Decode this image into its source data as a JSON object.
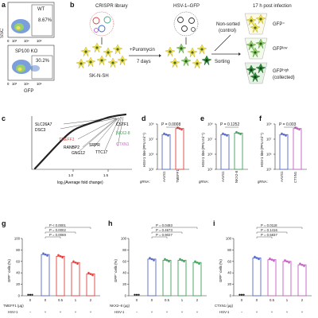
{
  "panels": {
    "a": "a",
    "b": "b",
    "c": "c",
    "d": "d",
    "e": "e",
    "f": "f",
    "g": "g",
    "h": "h",
    "i": "i"
  },
  "flow": {
    "ssc_label": "SSC",
    "gfp_label": "GFP",
    "wt_label": "WT",
    "wt_percent": "8.67%",
    "ko_label": "SP100 KO",
    "ko_percent": "30.2%",
    "tick_low": "10³",
    "tick_mid": "10⁴",
    "tick_high": "10⁵"
  },
  "schematic": {
    "library": "CRISPR library",
    "cells": "SK-N-SH",
    "step1_line1": "+Puromycin",
    "step1_line2": "7 days",
    "step2": "HSV-1–GFP",
    "step3": "17 h post infection",
    "nonsorted_line1": "Non-sorted",
    "nonsorted_line2": "(control)",
    "sorting": "Sorting",
    "pop1": "GFP⁺",
    "pop2": "GFPˡᵒʷ",
    "pop3_line1": "GFPʰⁱᵍʰ",
    "pop3_line2": "(collected)"
  },
  "rank_plot": {
    "xlabel": "log₂(Average fold change)",
    "ticks": [
      "1.0",
      "1.5"
    ],
    "genes": [
      "SLC26A7",
      "DSC3",
      "TMEFF1",
      "RANBP2",
      "GNG12",
      "SRPR",
      "TTC17",
      "CSTF1",
      "NKX2-8",
      "CTXN1"
    ],
    "colors": {
      "TMEFF1": "#e0413c",
      "NKX2-8": "#3fa15a",
      "CTXN1": "#c45fc4"
    }
  },
  "titer_plots": {
    "ylabel": "HSV-1 titre (PFU ml⁻¹)",
    "yticks": [
      "10⁸",
      "10⁷",
      "10⁶",
      "10⁵"
    ],
    "grna_label": "gRNA:",
    "control": "AAVS1",
    "d": {
      "gene": "TMEFF1",
      "p": "P = 0.0008",
      "values": [
        7.3,
        7.7
      ],
      "color": "#e0413c"
    },
    "e": {
      "gene": "NKX2-8",
      "p": "P = 0.1252",
      "values": [
        7.3,
        7.4
      ],
      "color": "#3fa15a"
    },
    "f": {
      "gene": "CTXN1",
      "p": "P = 0.003",
      "values": [
        7.3,
        7.7
      ],
      "color": "#c45fc4"
    }
  },
  "gfp_plots": {
    "ylabel": "GFP⁺ cells (%)",
    "yticks": [
      "100",
      "80",
      "60",
      "40",
      "20",
      "0"
    ],
    "xticks": [
      "0",
      "0",
      "0.5",
      "1",
      "2"
    ],
    "hsv": "HSV-1",
    "hsv_signs": [
      "−",
      "+",
      "+",
      "+",
      "+"
    ],
    "g": {
      "xlabel": "TMEFF1 (μg)",
      "pvals": [
        "P < 0.0001",
        "P = 0.0002",
        "P = 0.0069"
      ],
      "values": [
        0,
        72,
        69,
        58,
        38
      ],
      "color": "#e0413c"
    },
    "h": {
      "xlabel": "NKX2–8 (μg)",
      "pvals": [
        "P = 0.0493",
        "P = 0.4673",
        "P = 0.9027"
      ],
      "values": [
        0,
        64,
        62,
        62,
        58
      ],
      "color": "#3fa15a"
    },
    "i": {
      "xlabel": "CTXN1 (μg)",
      "pvals": [
        "P = 0.0118",
        "P = 0.1416",
        "P = 0.5837"
      ],
      "values": [
        0,
        66,
        63,
        60,
        54
      ],
      "color": "#c45fc4"
    }
  }
}
